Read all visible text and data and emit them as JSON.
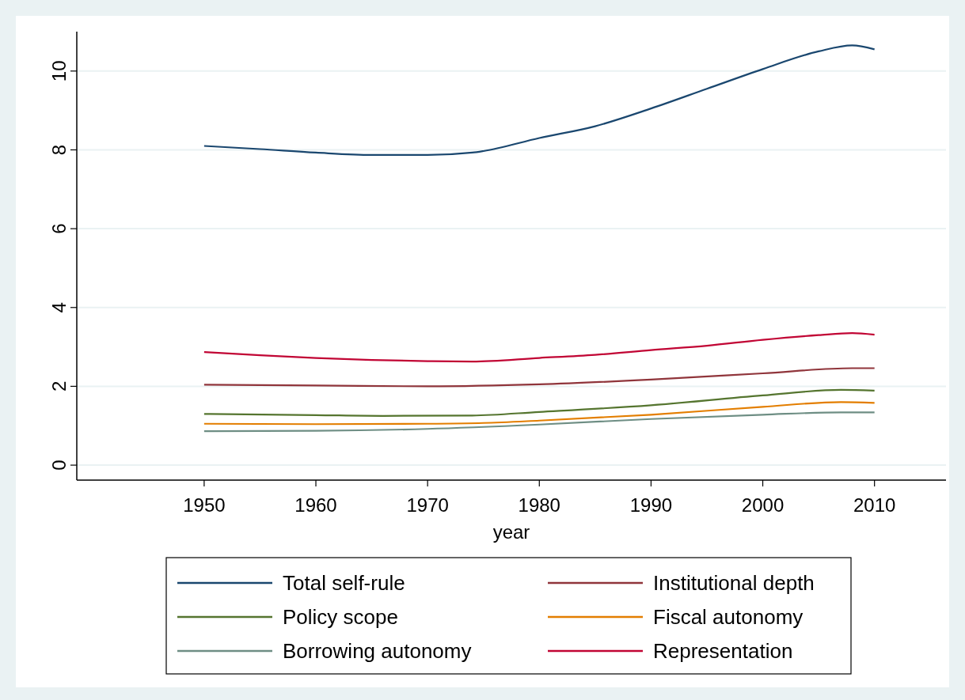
{
  "chart_data": {
    "type": "line",
    "xlabel": "year",
    "xlim": [
      1938.6,
      2016.4
    ],
    "xticks": [
      1950,
      1960,
      1970,
      1980,
      1990,
      2000,
      2010
    ],
    "ylim": [
      -0.38,
      11.0
    ],
    "yticks": [
      0,
      2,
      4,
      6,
      8,
      10
    ],
    "grid": "y",
    "legend": "bottom",
    "line_style": "solid",
    "series": [
      {
        "name": "Total self-rule",
        "color": "#1a476f",
        "x": [
          1950,
          1955,
          1960,
          1965,
          1970,
          1974,
          1975,
          1980,
          1985,
          1990,
          1995,
          2000,
          2005,
          2008,
          2010
        ],
        "values": [
          8.1,
          8.02,
          7.93,
          7.87,
          7.87,
          7.93,
          7.97,
          8.3,
          8.6,
          9.05,
          9.55,
          10.05,
          10.5,
          10.65,
          10.55
        ]
      },
      {
        "name": "Institutional depth",
        "color": "#90353b",
        "x": [
          1950,
          1960,
          1970,
          1980,
          1990,
          2000,
          2008,
          2010
        ],
        "values": [
          2.04,
          2.02,
          2.0,
          2.05,
          2.17,
          2.33,
          2.46,
          2.46
        ]
      },
      {
        "name": "Policy scope",
        "color": "#55752f",
        "x": [
          1950,
          1960,
          1966,
          1974,
          1980,
          1990,
          2000,
          2007,
          2010
        ],
        "values": [
          1.3,
          1.27,
          1.25,
          1.26,
          1.35,
          1.52,
          1.77,
          1.91,
          1.89
        ]
      },
      {
        "name": "Fiscal autonomy",
        "color": "#e37e00",
        "x": [
          1950,
          1960,
          1970,
          1975,
          1980,
          1990,
          2000,
          2007,
          2010
        ],
        "values": [
          1.05,
          1.04,
          1.05,
          1.07,
          1.13,
          1.28,
          1.48,
          1.6,
          1.58
        ]
      },
      {
        "name": "Borrowing autonomy",
        "color": "#6e8e84",
        "x": [
          1950,
          1960,
          1970,
          1980,
          1990,
          2000,
          2007,
          2010
        ],
        "values": [
          0.86,
          0.87,
          0.92,
          1.03,
          1.17,
          1.28,
          1.34,
          1.34
        ]
      },
      {
        "name": "Representation",
        "color": "#c10534",
        "x": [
          1950,
          1955,
          1960,
          1965,
          1970,
          1974,
          1980,
          1985,
          1990,
          1995,
          2000,
          2005,
          2008,
          2010
        ],
        "values": [
          2.87,
          2.79,
          2.72,
          2.67,
          2.64,
          2.63,
          2.72,
          2.8,
          2.92,
          3.03,
          3.18,
          3.3,
          3.35,
          3.31
        ]
      }
    ]
  }
}
